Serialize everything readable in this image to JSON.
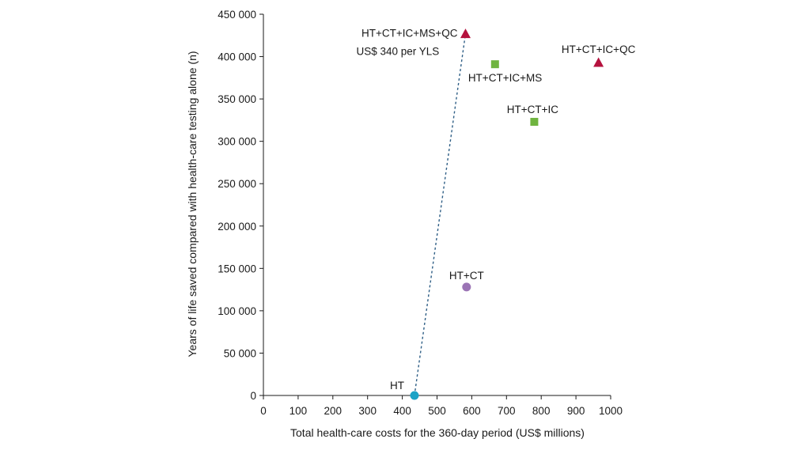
{
  "chart_data": {
    "type": "scatter",
    "xlabel": "Total health-care costs for the 360-day period (US$ millions)",
    "ylabel": "Years of life saved compared with health-care testing alone (n)",
    "xlim": [
      0,
      1000
    ],
    "ylim": [
      0,
      450000
    ],
    "x_ticks": [
      0,
      100,
      200,
      300,
      400,
      500,
      600,
      700,
      800,
      900,
      1000
    ],
    "y_ticks": [
      0,
      50000,
      100000,
      150000,
      200000,
      250000,
      300000,
      350000,
      400000,
      450000
    ],
    "x_tick_labels": [
      "0",
      "100",
      "200",
      "300",
      "400",
      "500",
      "600",
      "700",
      "800",
      "900",
      "1000"
    ],
    "y_tick_labels": [
      "0",
      "50 000",
      "100 000",
      "150 000",
      "200 000",
      "250 000",
      "300 000",
      "350 000",
      "400 000",
      "450 000"
    ],
    "grid": false,
    "points": [
      {
        "label": "HT",
        "x": 435,
        "y": 0,
        "marker": "circle",
        "color": "#1ba3c6"
      },
      {
        "label": "HT+CT",
        "x": 585,
        "y": 128000,
        "marker": "circle",
        "color": "#9b74b5"
      },
      {
        "label": "HT+CT+IC",
        "x": 780,
        "y": 323000,
        "marker": "square",
        "color": "#6fb43f"
      },
      {
        "label": "HT+CT+IC+MS",
        "x": 667,
        "y": 391000,
        "marker": "square",
        "color": "#6fb43f"
      },
      {
        "label": "HT+CT+IC+QC",
        "x": 965,
        "y": 393000,
        "marker": "triangle",
        "color": "#b5123e"
      },
      {
        "label": "HT+CT+IC+MS+QC",
        "x": 582,
        "y": 427000,
        "marker": "triangle",
        "color": "#b5123e"
      }
    ],
    "frontier": {
      "from": "HT",
      "to": "HT+CT+IC+MS+QC",
      "annotation": "US$ 340 per YLS"
    }
  }
}
